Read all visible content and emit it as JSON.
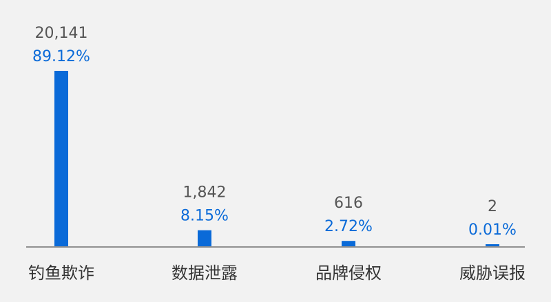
{
  "chart_data": {
    "type": "bar",
    "categories": [
      "钓鱼欺诈",
      "数据泄露",
      "品牌侵权",
      "威胁误报"
    ],
    "values": [
      20141,
      1842,
      616,
      2
    ],
    "percentages": [
      "89.12%",
      "8.15%",
      "2.72%",
      "0.01%"
    ],
    "value_labels": [
      "20,141",
      "1,842",
      "616",
      "2"
    ],
    "ylim": [
      0,
      20141
    ],
    "grid": false,
    "colors": {
      "bar": "#0a6ad8",
      "percent_text": "#0a6ad8",
      "count_text": "#555555",
      "category_text": "#333333",
      "axis": "#555555",
      "background": "#f2f2f2"
    }
  }
}
